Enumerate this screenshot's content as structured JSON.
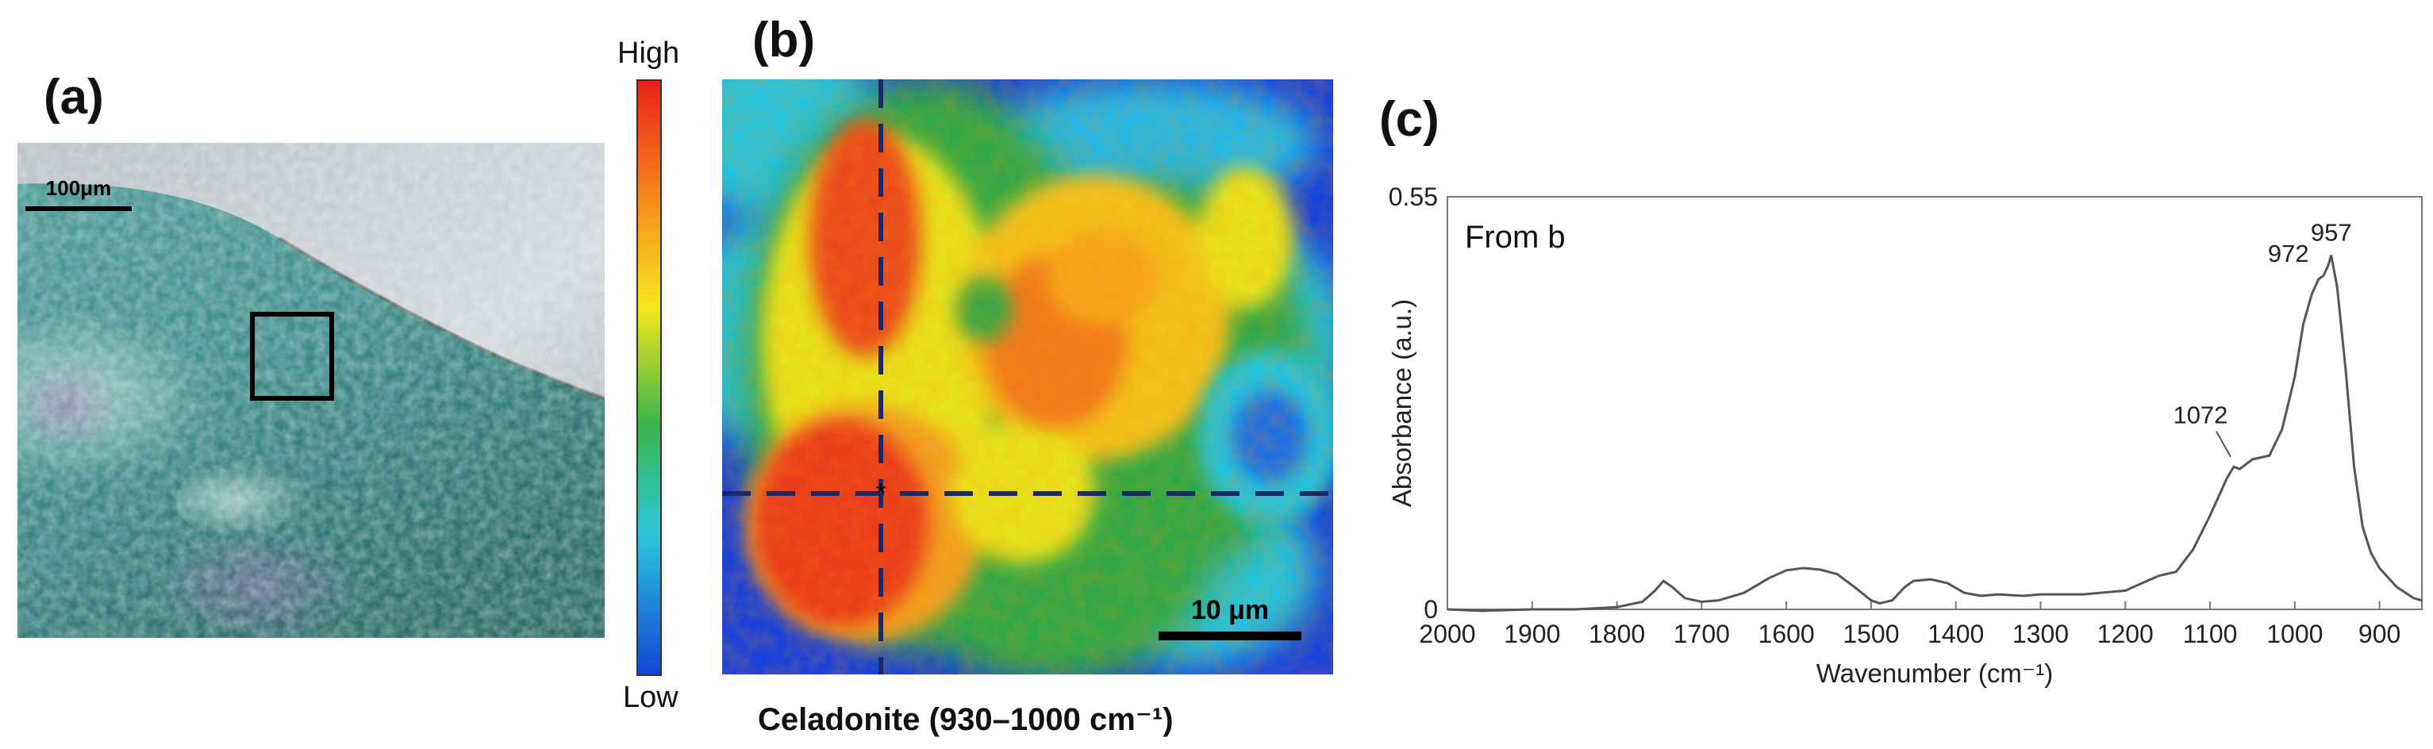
{
  "panels": {
    "a": {
      "label": "(a)",
      "scale_bar_label": "100μm"
    },
    "b": {
      "label": "(b)",
      "caption": "Celadonite (930–1000 cm⁻¹)",
      "scale_bar_label": "10 μm",
      "colorbar": {
        "high_label": "High",
        "low_label": "Low"
      }
    },
    "c": {
      "label": "(c)",
      "annotation": "From b"
    }
  },
  "chart_data": {
    "type": "line",
    "xlabel": "Wavenumber (cm⁻¹)",
    "ylabel": "Absorbance (a.u.)",
    "xlim": [
      2000,
      850
    ],
    "ylim": [
      0,
      0.55
    ],
    "x_ticks": [
      2000,
      1900,
      1800,
      1700,
      1600,
      1500,
      1400,
      1300,
      1200,
      1100,
      1000,
      900
    ],
    "y_ticks": [
      0,
      0.55
    ],
    "peak_labels": [
      {
        "x": 957,
        "y": 0.472,
        "text": "957"
      },
      {
        "x": 972,
        "y": 0.44,
        "text": "972"
      },
      {
        "x": 1072,
        "y": 0.195,
        "text": "1072"
      }
    ],
    "series": [
      {
        "color": "#555555",
        "x": [
          2000,
          1960,
          1900,
          1850,
          1800,
          1770,
          1755,
          1745,
          1735,
          1720,
          1700,
          1680,
          1650,
          1620,
          1600,
          1580,
          1560,
          1540,
          1520,
          1500,
          1490,
          1475,
          1460,
          1450,
          1430,
          1410,
          1390,
          1370,
          1350,
          1320,
          1300,
          1250,
          1200,
          1180,
          1160,
          1140,
          1120,
          1100,
          1090,
          1080,
          1072,
          1065,
          1050,
          1030,
          1015,
          1000,
          990,
          980,
          972,
          966,
          960,
          957,
          950,
          940,
          930,
          920,
          910,
          900,
          880,
          860,
          850
        ],
        "y": [
          0.0,
          -0.002,
          0.0,
          0.0,
          0.003,
          0.01,
          0.025,
          0.038,
          0.03,
          0.015,
          0.01,
          0.012,
          0.022,
          0.042,
          0.052,
          0.055,
          0.053,
          0.047,
          0.03,
          0.012,
          0.008,
          0.012,
          0.03,
          0.038,
          0.04,
          0.035,
          0.022,
          0.018,
          0.02,
          0.018,
          0.02,
          0.02,
          0.025,
          0.035,
          0.045,
          0.05,
          0.08,
          0.125,
          0.15,
          0.175,
          0.19,
          0.187,
          0.2,
          0.205,
          0.24,
          0.31,
          0.38,
          0.42,
          0.44,
          0.445,
          0.46,
          0.472,
          0.43,
          0.32,
          0.19,
          0.11,
          0.075,
          0.055,
          0.03,
          0.015,
          0.012
        ]
      }
    ]
  }
}
